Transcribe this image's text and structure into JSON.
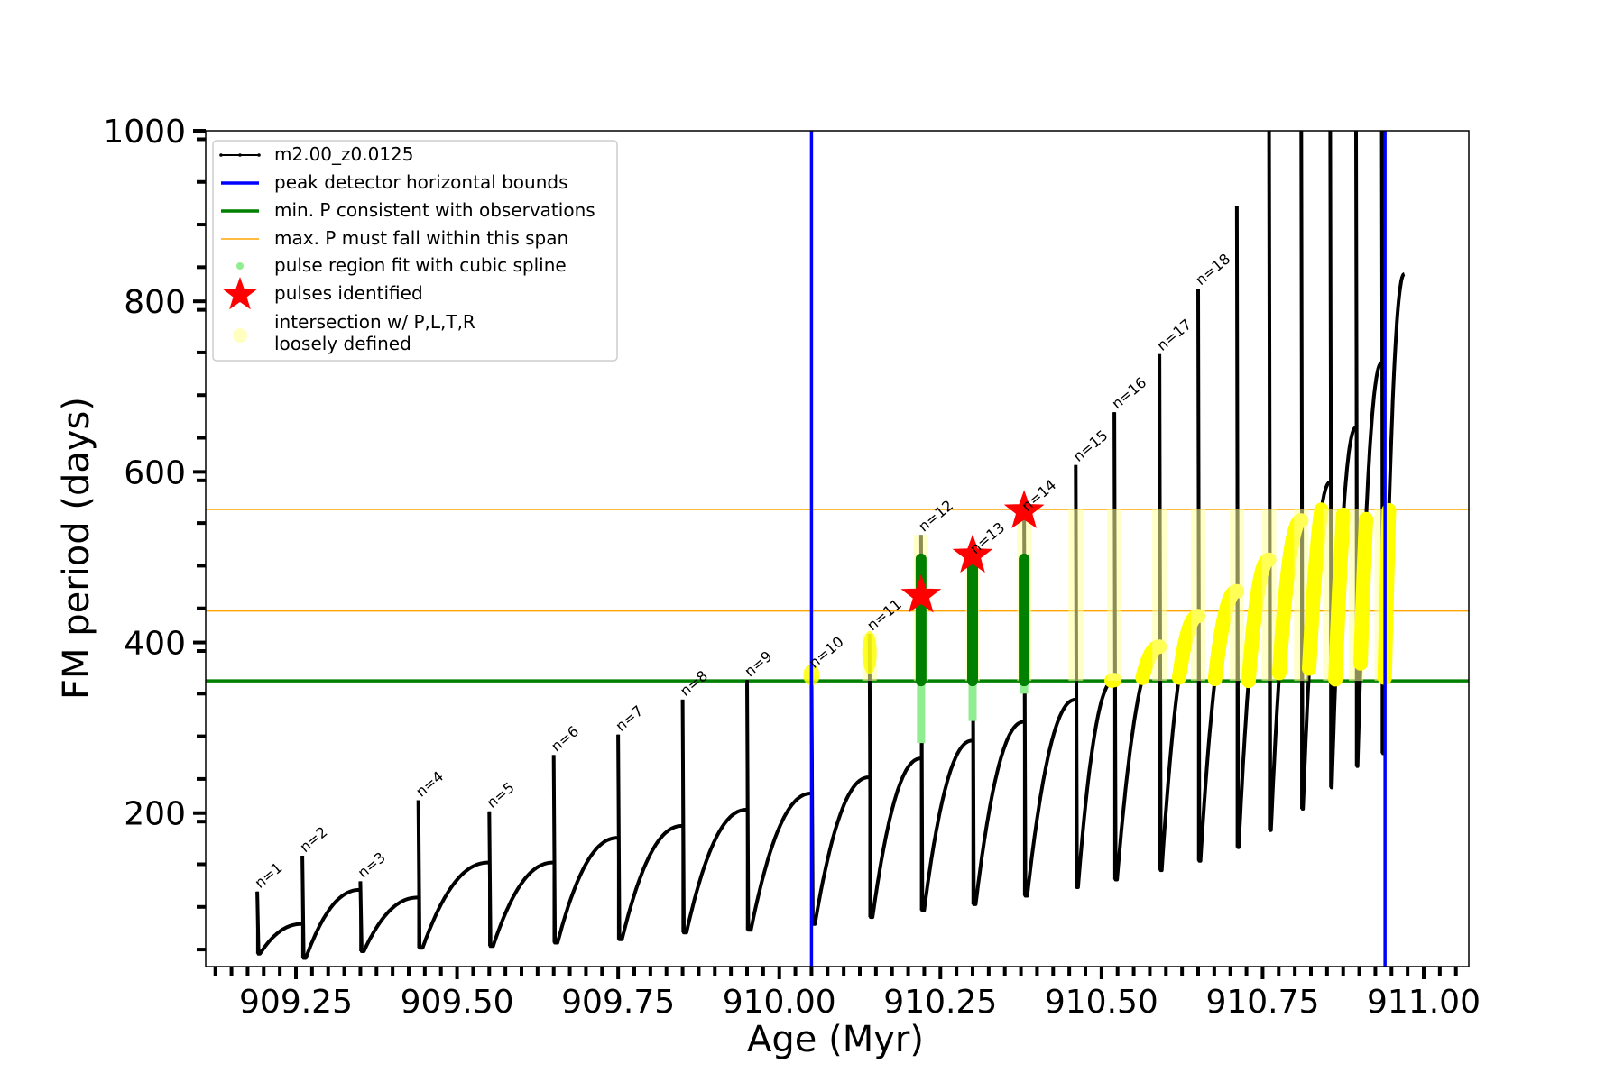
{
  "chart_data": {
    "type": "line",
    "xlabel": "Age (Myr)",
    "ylabel": "FM period (days)",
    "xlim": [
      909.11,
      911.07
    ],
    "ylim": [
      20,
      1000
    ],
    "xticks": [
      909.25,
      909.5,
      909.75,
      910.0,
      910.25,
      910.5,
      910.75,
      911.0
    ],
    "xtick_labels": [
      "909.25",
      "909.50",
      "909.75",
      "910.00",
      "910.25",
      "910.50",
      "910.75",
      "911.00"
    ],
    "yticks": [
      200,
      400,
      600,
      800,
      1000
    ],
    "ytick_labels": [
      "200",
      "400",
      "600",
      "800",
      "1000"
    ],
    "legend_position": "top-left",
    "legend": [
      {
        "label": "m2.00_z0.0125",
        "color": "#000000",
        "marker": "line-dot"
      },
      {
        "label": "peak detector horizontal bounds",
        "color": "#0000ff",
        "marker": "line"
      },
      {
        "label": "min. P consistent with observations",
        "color": "#008000",
        "marker": "line"
      },
      {
        "label": "max. P must fall within this span",
        "color": "#ffa500",
        "marker": "thin-line"
      },
      {
        "label": "pulse region fit with cubic spline",
        "color": "#90ee90",
        "marker": "dot"
      },
      {
        "label": "pulses identified",
        "color": "#ff0000",
        "marker": "star"
      },
      {
        "label": "intersection w/ P,L,T,R",
        "label2": "loosely defined",
        "color": "#ffffc0",
        "marker": "big-dot"
      }
    ],
    "vertical_lines": {
      "color": "#0000ff",
      "x": [
        910.05,
        910.94
      ]
    },
    "min_period_line": {
      "color": "#008000",
      "y": 355
    },
    "max_period_span": {
      "color": "#ffa500",
      "y": [
        437,
        556
      ]
    },
    "pulses": [
      {
        "label": "n=1",
        "x_start": 909.19,
        "x_end": 909.26,
        "top": 108,
        "min": 35,
        "end_value": 70
      },
      {
        "label": "n=2",
        "x_start": 909.26,
        "x_end": 909.35,
        "top": 150,
        "min": 30,
        "end_value": 110
      },
      {
        "label": "n=3",
        "x_start": 909.35,
        "x_end": 909.44,
        "top": 120,
        "min": 38,
        "end_value": 101
      },
      {
        "label": "n=4",
        "x_start": 909.44,
        "x_end": 909.55,
        "top": 215,
        "min": 42,
        "end_value": 142
      },
      {
        "label": "n=5",
        "x_start": 909.55,
        "x_end": 909.65,
        "top": 202,
        "min": 44,
        "end_value": 142
      },
      {
        "label": "n=6",
        "x_start": 909.65,
        "x_end": 909.75,
        "top": 268,
        "min": 48,
        "end_value": 171
      },
      {
        "label": "n=7",
        "x_start": 909.75,
        "x_end": 909.85,
        "top": 292,
        "min": 52,
        "end_value": 185
      },
      {
        "label": "n=8",
        "x_start": 909.85,
        "x_end": 909.95,
        "top": 333,
        "min": 60,
        "end_value": 204
      },
      {
        "label": "n=9",
        "x_start": 909.95,
        "x_end": 910.05,
        "top": 356,
        "min": 63,
        "end_value": 223
      },
      {
        "label": "n=10",
        "x_start": 910.05,
        "x_end": 910.14,
        "top": 366,
        "min": 70,
        "end_value": 242
      },
      {
        "label": "n=11",
        "x_start": 910.14,
        "x_end": 910.22,
        "top": 410,
        "min": 78,
        "end_value": 264
      },
      {
        "label": "n=12",
        "x_start": 910.22,
        "x_end": 910.3,
        "top": 526,
        "min": 86,
        "end_value": 285
      },
      {
        "label": "n=13",
        "x_start": 910.3,
        "x_end": 910.38,
        "top": 500,
        "min": 93,
        "end_value": 307
      },
      {
        "label": "n=14",
        "x_start": 910.38,
        "x_end": 910.46,
        "top": 550,
        "min": 103,
        "end_value": 333
      },
      {
        "label": "n=15",
        "x_start": 910.46,
        "x_end": 910.52,
        "top": 608,
        "min": 113,
        "end_value": 356
      },
      {
        "label": "n=16",
        "x_start": 910.52,
        "x_end": 910.59,
        "top": 670,
        "min": 122,
        "end_value": 395
      },
      {
        "label": "n=17",
        "x_start": 910.59,
        "x_end": 910.65,
        "top": 738,
        "min": 133,
        "end_value": 431
      },
      {
        "label": "n=18",
        "x_start": 910.65,
        "x_end": 910.71,
        "top": 815,
        "min": 144,
        "end_value": 460
      },
      {
        "label": "",
        "x_start": 910.71,
        "x_end": 910.76,
        "top": 912,
        "min": 160,
        "end_value": 497
      },
      {
        "label": "",
        "x_start": 910.76,
        "x_end": 910.81,
        "top": 1000,
        "min": 180,
        "end_value": 543
      },
      {
        "label": "",
        "x_start": 910.81,
        "x_end": 910.855,
        "top": 1000,
        "min": 205,
        "end_value": 588
      },
      {
        "label": "",
        "x_start": 910.855,
        "x_end": 910.895,
        "top": 1000,
        "min": 230,
        "end_value": 652
      },
      {
        "label": "",
        "x_start": 910.895,
        "x_end": 910.935,
        "top": 1000,
        "min": 255,
        "end_value": 728
      },
      {
        "label": "",
        "x_start": 910.935,
        "x_end": 910.97,
        "top": 1000,
        "min": 270,
        "end_value": 832
      }
    ],
    "pulses_identified": [
      {
        "x": 910.22,
        "y": 455
      },
      {
        "x": 910.3,
        "y": 502
      },
      {
        "x": 910.38,
        "y": 554
      }
    ],
    "spline_fit_columns": [
      {
        "x": 910.22,
        "y_min": 282,
        "y_max": 498
      },
      {
        "x": 910.3,
        "y_min": 308,
        "y_max": 498
      },
      {
        "x": 910.38,
        "y_min": 340,
        "y_max": 498
      }
    ]
  }
}
